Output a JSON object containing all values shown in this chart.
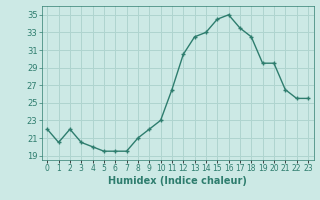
{
  "hours": [
    0,
    1,
    2,
    3,
    4,
    5,
    6,
    7,
    8,
    9,
    10,
    11,
    12,
    13,
    14,
    15,
    16,
    17,
    18,
    19,
    20,
    21,
    22,
    23
  ],
  "values": [
    22.0,
    20.5,
    22.0,
    20.5,
    20.0,
    19.5,
    19.5,
    19.5,
    21.0,
    22.0,
    23.0,
    26.5,
    30.5,
    32.5,
    33.0,
    34.5,
    35.0,
    33.5,
    32.5,
    29.5,
    29.5,
    26.5,
    25.5,
    25.5
  ],
  "line_color": "#2e7d6e",
  "marker": "+",
  "bg_color": "#cce9e5",
  "grid_color": "#afd4cf",
  "xlabel": "Humidex (Indice chaleur)",
  "ylim": [
    18.5,
    36
  ],
  "xlim": [
    -0.5,
    23.5
  ],
  "yticks": [
    19,
    21,
    23,
    25,
    27,
    29,
    31,
    33,
    35
  ],
  "xtick_labels": [
    "0",
    "1",
    "2",
    "3",
    "4",
    "5",
    "6",
    "7",
    "8",
    "9",
    "10",
    "11",
    "12",
    "13",
    "14",
    "15",
    "16",
    "17",
    "18",
    "19",
    "20",
    "21",
    "22",
    "23"
  ]
}
